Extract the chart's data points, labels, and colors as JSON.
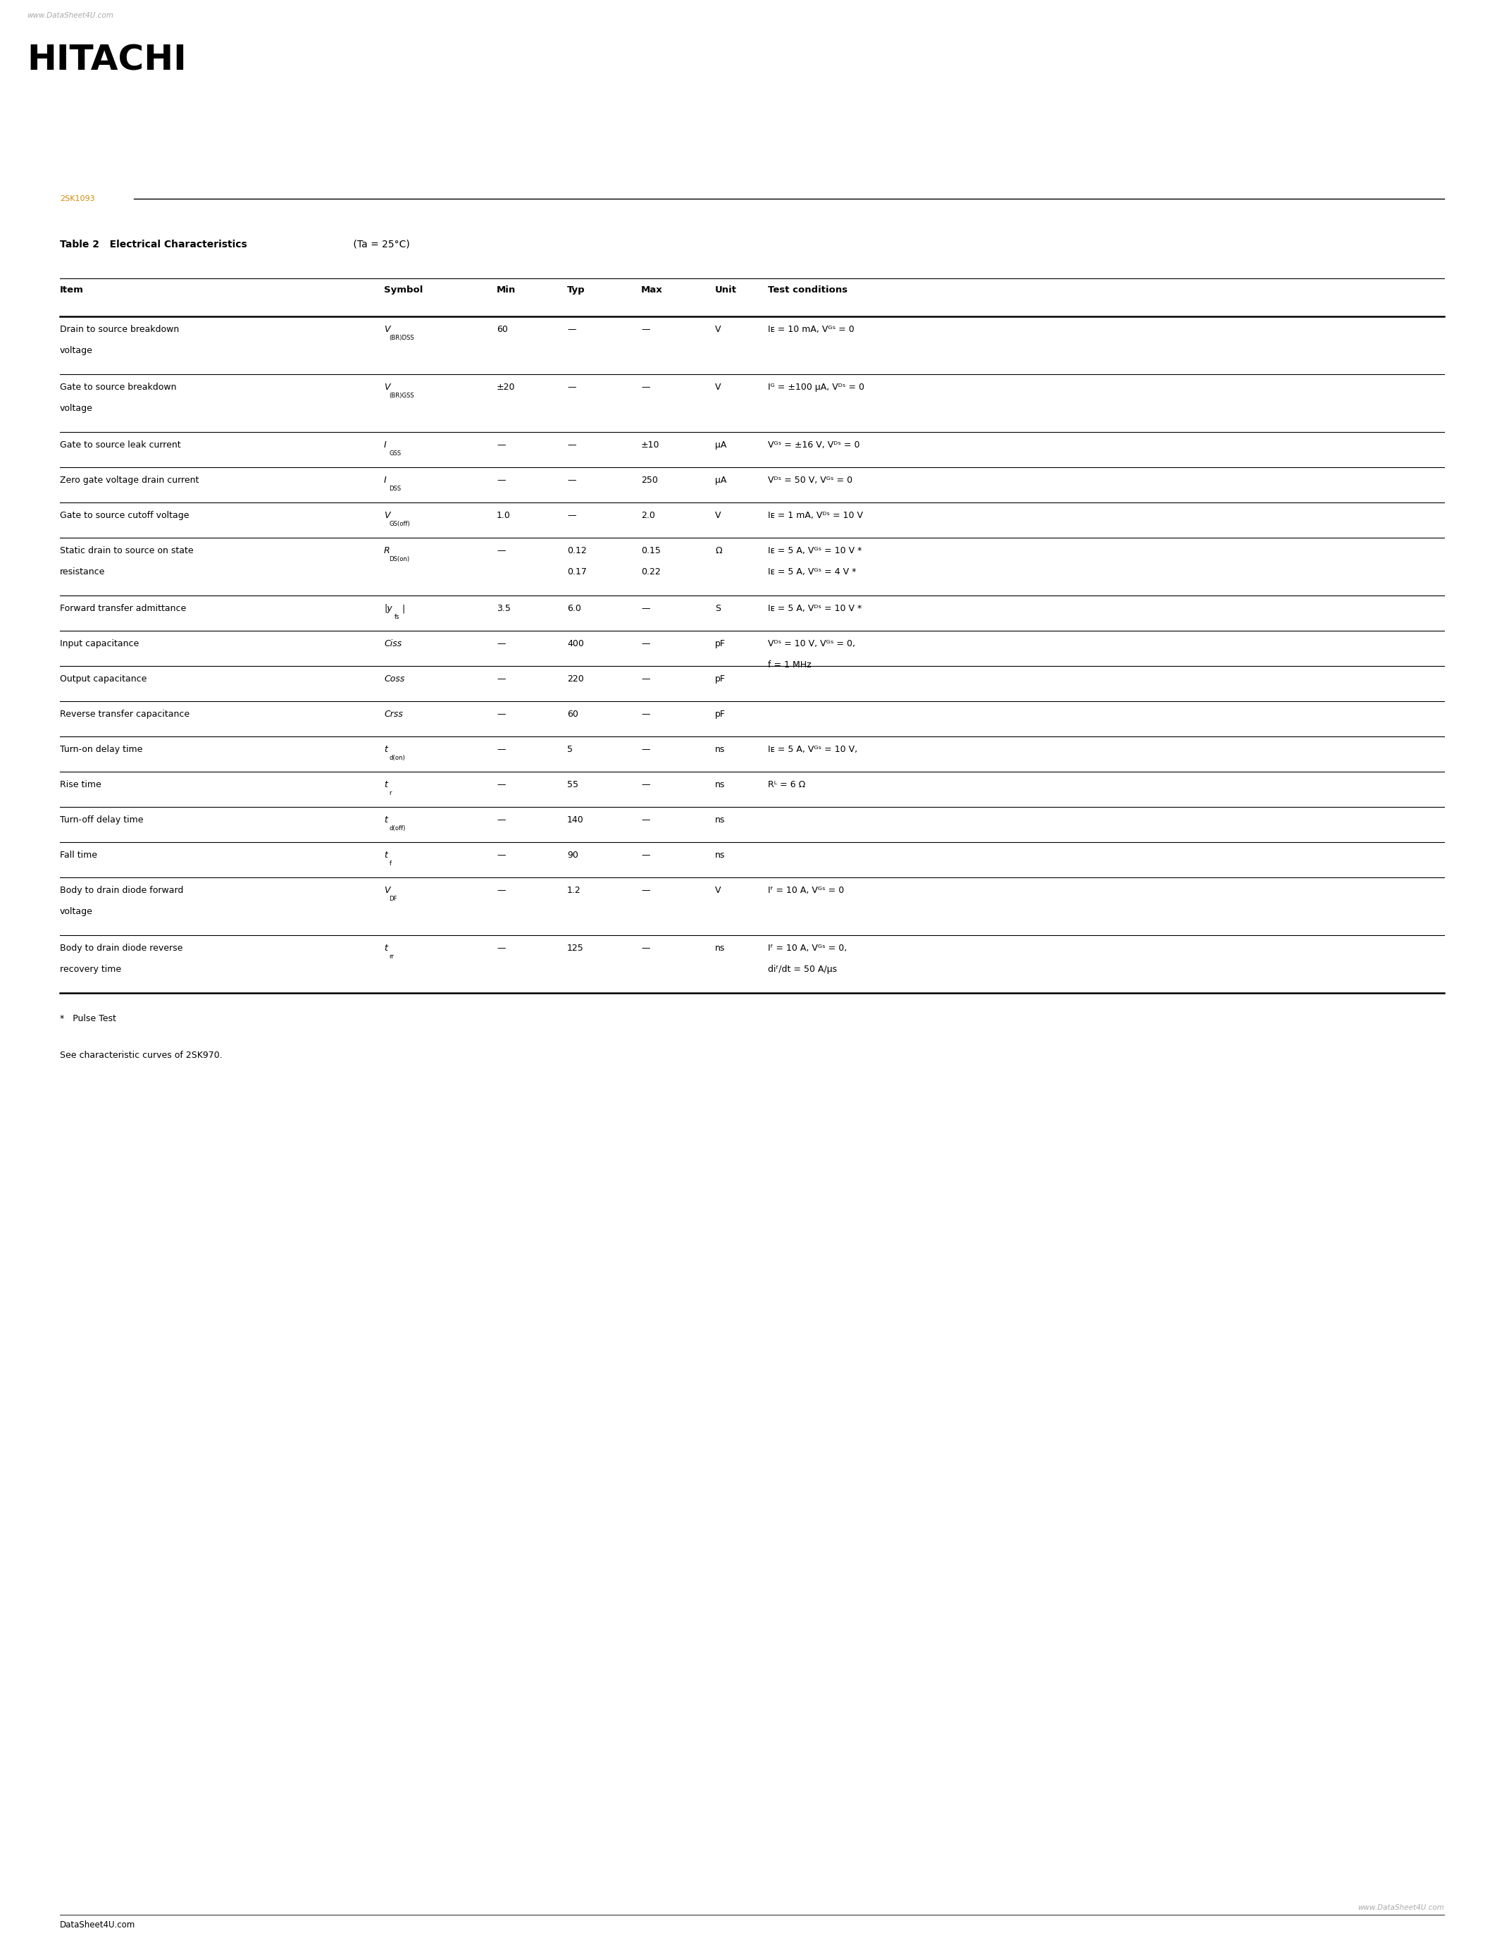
{
  "watermark_top": "www.DataSheet4U.com",
  "watermark_bottom": "www.DataSheet4U.com",
  "footer_text": "DataSheet4U.com",
  "logo": "HITACHI",
  "part_number": "2SK1093",
  "table_title_bold": "Table 2   Electrical Characteristics",
  "table_title_normal": " (Ta = 25°C)",
  "orange_color": "#D4880A",
  "bg_color": "#FFFFFF",
  "rows": [
    {
      "item": [
        "Drain to source breakdown",
        "voltage"
      ],
      "sym_main": "V",
      "sym_sub": "(BR)DSS",
      "min": "60",
      "typ": "—",
      "max": "—",
      "unit": "V",
      "cond1": "Iᴇ = 10 mA, Vᴳˢ = 0",
      "cond2": null,
      "two_line_item": true,
      "extra_row": null
    },
    {
      "item": [
        "Gate to source breakdown",
        "voltage"
      ],
      "sym_main": "V",
      "sym_sub": "(BR)GSS",
      "min": "±20",
      "typ": "—",
      "max": "—",
      "unit": "V",
      "cond1": "Iᴳ = ±100 μA, Vᴰˢ = 0",
      "cond2": null,
      "two_line_item": true,
      "extra_row": null
    },
    {
      "item": [
        "Gate to source leak current"
      ],
      "sym_main": "I",
      "sym_sub": "GSS",
      "min": "—",
      "typ": "—",
      "max": "±10",
      "unit": "μA",
      "cond1": "Vᴳˢ = ±16 V, Vᴰˢ = 0",
      "cond2": null,
      "two_line_item": false,
      "extra_row": null
    },
    {
      "item": [
        "Zero gate voltage drain current"
      ],
      "sym_main": "I",
      "sym_sub": "DSS",
      "min": "—",
      "typ": "—",
      "max": "250",
      "unit": "μA",
      "cond1": "Vᴰˢ = 50 V, Vᴳˢ = 0",
      "cond2": null,
      "two_line_item": false,
      "extra_row": null
    },
    {
      "item": [
        "Gate to source cutoff voltage"
      ],
      "sym_main": "V",
      "sym_sub": "GS(off)",
      "min": "1.0",
      "typ": "—",
      "max": "2.0",
      "unit": "V",
      "cond1": "Iᴇ = 1 mA, Vᴰˢ = 10 V",
      "cond2": null,
      "two_line_item": false,
      "extra_row": null
    },
    {
      "item": [
        "Static drain to source on state",
        "resistance"
      ],
      "sym_main": "R",
      "sym_sub": "DS(on)",
      "min": "—",
      "typ": "0.12",
      "max": "0.15",
      "unit": "Ω",
      "cond1": "Iᴇ = 5 A, Vᴳˢ = 10 V *",
      "cond2": null,
      "two_line_item": true,
      "extra_row": {
        "min": "",
        "typ": "0.17",
        "max": "0.22",
        "unit": "",
        "cond1": "Iᴇ = 5 A, Vᴳˢ = 4 V *",
        "cond2": null
      }
    },
    {
      "item": [
        "Forward transfer admittance"
      ],
      "sym_main": "|y",
      "sym_sub": "fs",
      "sym_suffix": "|",
      "min": "3.5",
      "typ": "6.0",
      "max": "—",
      "unit": "S",
      "cond1": "Iᴇ = 5 A, Vᴰˢ = 10 V *",
      "cond2": null,
      "two_line_item": false,
      "extra_row": null
    },
    {
      "item": [
        "Input capacitance"
      ],
      "sym_main": "Ciss",
      "sym_sub": null,
      "min": "—",
      "typ": "400",
      "max": "—",
      "unit": "pF",
      "cond1": "Vᴰˢ = 10 V, Vᴳˢ = 0,",
      "cond2": "f = 1 MHz",
      "two_line_item": false,
      "extra_row": null
    },
    {
      "item": [
        "Output capacitance"
      ],
      "sym_main": "Coss",
      "sym_sub": null,
      "min": "—",
      "typ": "220",
      "max": "—",
      "unit": "pF",
      "cond1": null,
      "cond2": null,
      "two_line_item": false,
      "extra_row": null
    },
    {
      "item": [
        "Reverse transfer capacitance"
      ],
      "sym_main": "Crss",
      "sym_sub": null,
      "min": "—",
      "typ": "60",
      "max": "—",
      "unit": "pF",
      "cond1": null,
      "cond2": null,
      "two_line_item": false,
      "extra_row": null
    },
    {
      "item": [
        "Turn-on delay time"
      ],
      "sym_main": "t",
      "sym_sub": "d(on)",
      "min": "—",
      "typ": "5",
      "max": "—",
      "unit": "ns",
      "cond1": "Iᴇ = 5 A, Vᴳˢ = 10 V,",
      "cond2": null,
      "two_line_item": false,
      "extra_row": null
    },
    {
      "item": [
        "Rise time"
      ],
      "sym_main": "t",
      "sym_sub": "r",
      "min": "—",
      "typ": "55",
      "max": "—",
      "unit": "ns",
      "cond1": "Rᴸ = 6 Ω",
      "cond2": null,
      "two_line_item": false,
      "extra_row": null
    },
    {
      "item": [
        "Turn-off delay time"
      ],
      "sym_main": "t",
      "sym_sub": "d(off)",
      "min": "—",
      "typ": "140",
      "max": "—",
      "unit": "ns",
      "cond1": null,
      "cond2": null,
      "two_line_item": false,
      "extra_row": null
    },
    {
      "item": [
        "Fall time"
      ],
      "sym_main": "t",
      "sym_sub": "f",
      "min": "—",
      "typ": "90",
      "max": "—",
      "unit": "ns",
      "cond1": null,
      "cond2": null,
      "two_line_item": false,
      "extra_row": null
    },
    {
      "item": [
        "Body to drain diode forward",
        "voltage"
      ],
      "sym_main": "V",
      "sym_sub": "DF",
      "min": "—",
      "typ": "1.2",
      "max": "—",
      "unit": "V",
      "cond1": "Iᶠ = 10 A, Vᴳˢ = 0",
      "cond2": null,
      "two_line_item": true,
      "extra_row": null
    },
    {
      "item": [
        "Body to drain diode reverse",
        "recovery time"
      ],
      "sym_main": "t",
      "sym_sub": "rr",
      "min": "—",
      "typ": "125",
      "max": "—",
      "unit": "ns",
      "cond1": "Iᶠ = 10 A, Vᴳˢ = 0,",
      "cond2": "diᶠ/dt = 50 A/μs",
      "two_line_item": true,
      "extra_row": null
    }
  ],
  "footnote1": "*   Pulse Test",
  "footnote2": "See characteristic curves of 2SK970."
}
